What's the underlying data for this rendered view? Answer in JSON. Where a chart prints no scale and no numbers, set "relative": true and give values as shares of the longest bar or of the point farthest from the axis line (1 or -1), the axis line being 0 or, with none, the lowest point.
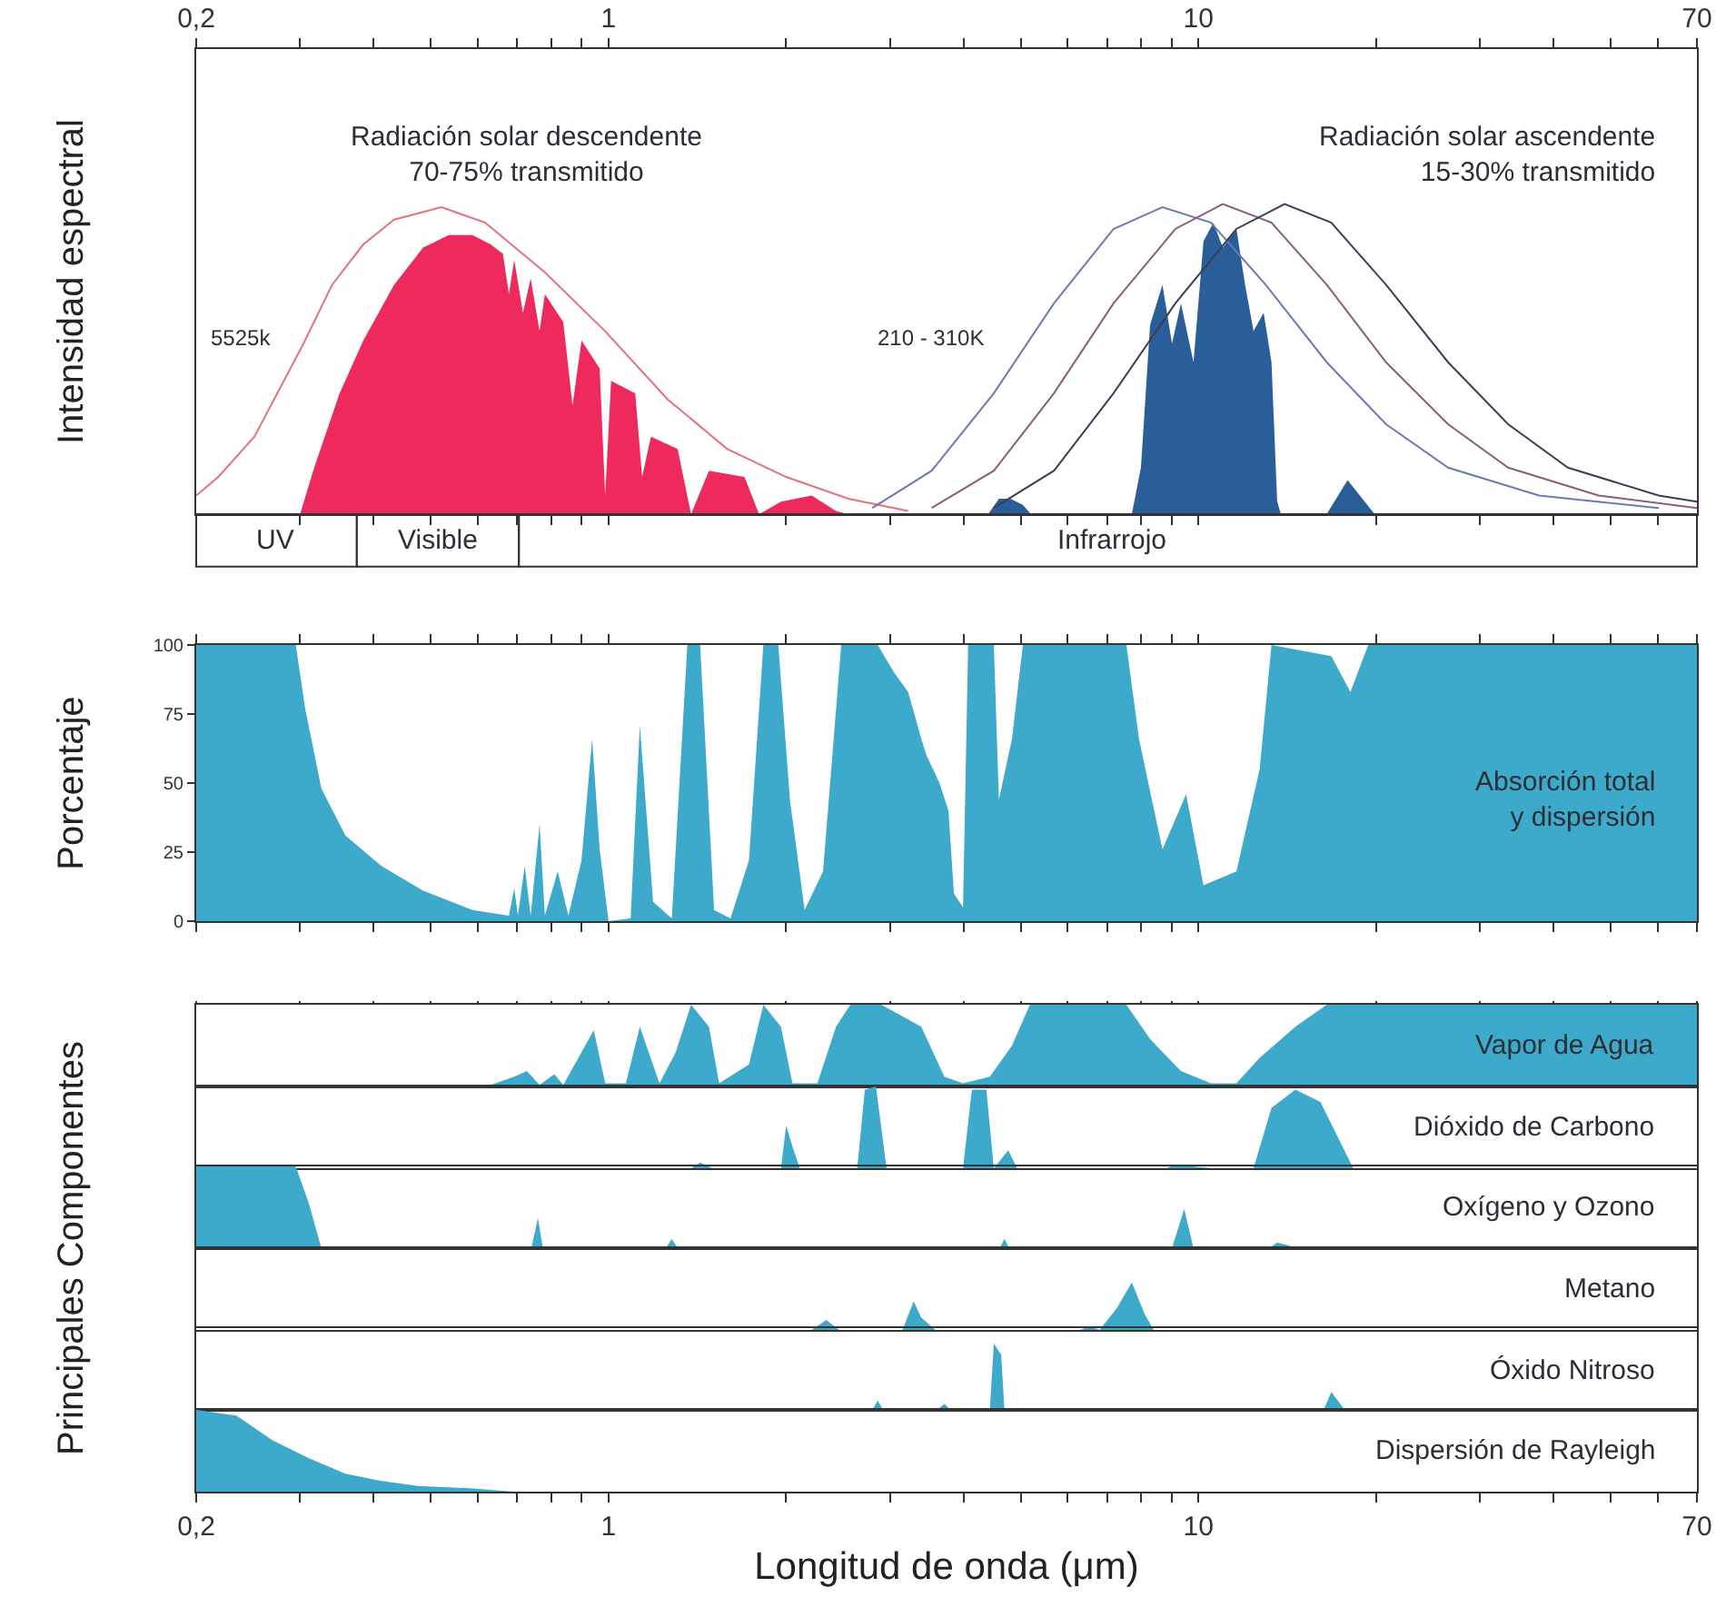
{
  "chart_data": [
    {
      "type": "area",
      "relative": true,
      "log": "x",
      "xlim": [
        0.2,
        70
      ],
      "tick_labels": "x",
      "ylabel": "Intensidad espectral",
      "xticks": [
        {
          "value": 0.2,
          "label": "0,2"
        },
        {
          "value": 0.3,
          "label": null
        },
        {
          "value": 0.4,
          "label": null
        },
        {
          "value": 0.5,
          "label": null
        },
        {
          "value": 0.6,
          "label": null
        },
        {
          "value": 0.7,
          "label": null
        },
        {
          "value": 0.8,
          "label": null
        },
        {
          "value": 0.9,
          "label": null
        },
        1,
        {
          "value": 2,
          "label": null
        },
        {
          "value": 3,
          "label": null
        },
        {
          "value": 4,
          "label": null
        },
        {
          "value": 5,
          "label": null
        },
        {
          "value": 6,
          "label": null
        },
        {
          "value": 7,
          "label": null
        },
        {
          "value": 8,
          "label": null
        },
        {
          "value": 9,
          "label": null
        },
        10,
        {
          "value": 20,
          "label": null
        },
        {
          "value": 30,
          "label": null
        },
        {
          "value": 40,
          "label": null
        },
        {
          "value": 50,
          "label": null
        },
        {
          "value": 60,
          "label": null
        },
        70
      ],
      "series": [
        {
          "type": "area",
          "color": "#ee2a5c",
          "x": [
            0.3,
            0.317,
            0.35,
            0.384,
            0.433,
            0.485,
            0.536,
            0.588,
            0.631,
            0.662,
            0.678,
            0.692,
            0.716,
            0.738,
            0.764,
            0.78,
            0.838,
            0.869,
            0.9,
            0.966,
            0.987,
            1.01,
            1.11,
            1.14,
            1.18,
            1.31,
            1.38,
            1.48,
            1.7,
            1.8,
            1.96,
            2.21,
            2.43,
            2.55
          ],
          "values": [
            0,
            0.15,
            0.39,
            0.56,
            0.74,
            0.86,
            0.9,
            0.9,
            0.87,
            0.84,
            0.71,
            0.82,
            0.65,
            0.76,
            0.59,
            0.71,
            0.62,
            0.35,
            0.56,
            0.47,
            0.06,
            0.43,
            0.39,
            0.12,
            0.25,
            0.21,
            0,
            0.14,
            0.12,
            0,
            0.04,
            0.06,
            0.01,
            0
          ]
        },
        {
          "type": "area",
          "color": "#2a5e99",
          "x": [
            4.4,
            4.59,
            4.8,
            5.04,
            5.2,
            7.71,
            7.99,
            8.28,
            8.69,
            9.02,
            9.34,
            9.81,
            10.2,
            10.6,
            11.0,
            11.6,
            12.0,
            12.4,
            12.9,
            13.3,
            13.6,
            13.8,
            16.5,
            17.9,
            19.9
          ],
          "values": [
            0,
            0.05,
            0.05,
            0.03,
            0,
            0,
            0.15,
            0.61,
            0.74,
            0.55,
            0.68,
            0.49,
            0.88,
            0.94,
            0.86,
            0.92,
            0.74,
            0.59,
            0.65,
            0.49,
            0.04,
            0,
            0,
            0.11,
            0
          ]
        },
        {
          "type": "line",
          "color": "#e2737d",
          "x": [
            0.2,
            0.218,
            0.251,
            0.304,
            0.34,
            0.384,
            0.433,
            0.521,
            0.618,
            0.78,
            0.987,
            1.26,
            1.59,
            2.0,
            2.55,
            3.22
          ],
          "values": [
            0.06,
            0.12,
            0.25,
            0.55,
            0.74,
            0.87,
            0.95,
            0.99,
            0.94,
            0.78,
            0.59,
            0.37,
            0.21,
            0.12,
            0.05,
            0.01
          ]
        },
        {
          "type": "line",
          "color": "#6a7bb0",
          "x": [
            2.8,
            3.53,
            4.5,
            5.69,
            7.18,
            8.69,
            10.5,
            13.0,
            16.5,
            20.8,
            26.5,
            37.8,
            60.3
          ],
          "values": [
            0.02,
            0.14,
            0.39,
            0.68,
            0.92,
            0.99,
            0.94,
            0.74,
            0.49,
            0.29,
            0.15,
            0.06,
            0.02
          ]
        },
        {
          "type": "line",
          "color": "#8c5c7c",
          "x": [
            3.53,
            4.5,
            5.69,
            7.18,
            9.14,
            11.0,
            13.3,
            16.5,
            20.8,
            26.5,
            33.5,
            47.7,
            70
          ],
          "values": [
            0.02,
            0.14,
            0.39,
            0.68,
            0.92,
            1,
            0.94,
            0.74,
            0.49,
            0.29,
            0.15,
            0.06,
            0.02
          ]
        },
        {
          "type": "line",
          "color": "#3a3f55",
          "x": [
            4.5,
            5.69,
            7.18,
            9.14,
            11.6,
            14.0,
            16.8,
            20.8,
            26.5,
            33.5,
            42.3,
            60.3,
            70
          ],
          "values": [
            0.02,
            0.14,
            0.39,
            0.68,
            0.92,
            1,
            0.94,
            0.74,
            0.49,
            0.29,
            0.15,
            0.06,
            0.04
          ]
        }
      ],
      "annotations": [
        "Radiación solar descendente\n70-75% transmitido",
        "Radiación solar ascendente\n15-30% transmitido",
        "5525k",
        "210 - 310K",
        "UV",
        "Visible",
        "Infrarrojo"
      ]
    },
    {
      "type": "area",
      "log": "x",
      "xlim": [
        0.2,
        70
      ],
      "ylim": [
        0,
        100
      ],
      "yticks": [
        0,
        25,
        50,
        75,
        100
      ],
      "tick_labels": "y",
      "ylabel": "Porcentaje",
      "color": "#3eaacb",
      "xticks": [
        {
          "value": 0.2,
          "label": null
        },
        {
          "value": 0.3,
          "label": null
        },
        {
          "value": 0.4,
          "label": null
        },
        {
          "value": 0.5,
          "label": null
        },
        {
          "value": 0.6,
          "label": null
        },
        {
          "value": 0.7,
          "label": null
        },
        {
          "value": 0.8,
          "label": null
        },
        {
          "value": 0.9,
          "label": null
        },
        {
          "value": 1,
          "label": null
        },
        {
          "value": 2,
          "label": null
        },
        {
          "value": 3,
          "label": null
        },
        {
          "value": 4,
          "label": null
        },
        {
          "value": 5,
          "label": null
        },
        {
          "value": 6,
          "label": null
        },
        {
          "value": 7,
          "label": null
        },
        {
          "value": 8,
          "label": null
        },
        {
          "value": 9,
          "label": null
        },
        {
          "value": 10,
          "label": null
        },
        {
          "value": 20,
          "label": null
        },
        {
          "value": 30,
          "label": null
        },
        {
          "value": 40,
          "label": null
        },
        {
          "value": 50,
          "label": null
        },
        {
          "value": 60,
          "label": null
        },
        {
          "value": 70,
          "label": null
        }
      ],
      "x": [
        0.2,
        0.295,
        0.306,
        0.326,
        0.358,
        0.412,
        0.485,
        0.588,
        0.678,
        0.692,
        0.702,
        0.721,
        0.738,
        0.764,
        0.78,
        0.82,
        0.855,
        0.9,
        0.938,
        0.966,
        1.0,
        1.09,
        1.13,
        1.19,
        1.28,
        1.36,
        1.43,
        1.51,
        1.61,
        1.73,
        1.83,
        1.94,
        2.03,
        2.15,
        2.31,
        2.48,
        2.86,
        3.05,
        3.22,
        3.39,
        3.46,
        3.64,
        3.77,
        3.85,
        3.99,
        4.07,
        4.5,
        4.59,
        4.83,
        5.04,
        7.55,
        7.93,
        8.69,
        9.53,
        10.2,
        11.6,
        12.7,
        13.3,
        16.8,
        18.1,
        19.4,
        70
      ],
      "values": [
        100,
        100,
        77,
        48,
        31,
        20,
        11,
        4,
        2,
        12,
        2,
        20,
        2,
        35,
        2,
        18,
        2,
        22,
        66,
        26,
        0,
        1,
        71,
        7,
        1,
        100,
        100,
        4,
        1,
        22,
        100,
        100,
        44,
        4,
        18,
        100,
        100,
        90,
        83,
        66,
        60,
        50,
        40,
        10,
        5,
        100,
        100,
        44,
        66,
        100,
        100,
        66,
        26,
        46,
        13,
        18,
        55,
        100,
        96,
        83,
        100,
        100
      ],
      "annotations": [
        "Absorción total\ny dispersión"
      ]
    },
    {
      "type": "area",
      "relative": true,
      "log": "x",
      "xlim": [
        0.2,
        70
      ],
      "tick_labels": false,
      "ylabel": "Principales Componentes",
      "color": "#3eaacb",
      "xticks": [
        {
          "value": 0.2,
          "label": null
        },
        {
          "value": 0.3,
          "label": null
        },
        {
          "value": 0.4,
          "label": null
        },
        {
          "value": 0.5,
          "label": null
        },
        {
          "value": 0.6,
          "label": null
        },
        {
          "value": 0.7,
          "label": null
        },
        {
          "value": 0.8,
          "label": null
        },
        {
          "value": 0.9,
          "label": null
        },
        {
          "value": 1,
          "label": null
        },
        {
          "value": 2,
          "label": null
        },
        {
          "value": 3,
          "label": null
        },
        {
          "value": 4,
          "label": null
        },
        {
          "value": 5,
          "label": null
        },
        {
          "value": 6,
          "label": null
        },
        {
          "value": 7,
          "label": null
        },
        {
          "value": 8,
          "label": null
        },
        {
          "value": 9,
          "label": null
        },
        {
          "value": 10,
          "label": null
        },
        {
          "value": 20,
          "label": null
        },
        {
          "value": 30,
          "label": null
        },
        {
          "value": 40,
          "label": null
        },
        {
          "value": 50,
          "label": null
        },
        {
          "value": 60,
          "label": null
        },
        {
          "value": 70,
          "label": null
        }
      ],
      "x": [
        0.588,
        0.631,
        0.692,
        0.727,
        0.764,
        0.809,
        0.838,
        0.9,
        0.944,
        0.987,
        1.07,
        1.13,
        1.22,
        1.3,
        1.38,
        1.48,
        1.54,
        1.73,
        1.83,
        1.96,
        2.05,
        2.26,
        2.43,
        2.57,
        2.9,
        3.11,
        3.39,
        3.71,
        3.99,
        4.43,
        4.83,
        5.18,
        7.55,
        8.28,
        9.34,
        10.5,
        11.6,
        12.7,
        14.6,
        16.5,
        70
      ],
      "values": [
        0,
        0.02,
        0.12,
        0.19,
        0.02,
        0.15,
        0.02,
        0.42,
        0.69,
        0.04,
        0.04,
        0.73,
        0.04,
        0.42,
        1,
        0.73,
        0.04,
        0.27,
        1,
        0.73,
        0.04,
        0.04,
        0.73,
        1,
        1,
        0.88,
        0.73,
        0.12,
        0.04,
        0.12,
        0.5,
        1,
        1,
        0.58,
        0.19,
        0.04,
        0.04,
        0.35,
        0.73,
        1,
        1
      ],
      "annotations": [
        "Vapor de Agua"
      ]
    },
    {
      "type": "area",
      "relative": true,
      "log": "x",
      "xlim": [
        0.2,
        70
      ],
      "tick_labels": false,
      "color": "#3eaacb",
      "x": [
        1.38,
        1.43,
        1.5,
        1.96,
        2.0,
        2.06,
        2.11,
        2.64,
        2.72,
        2.84,
        2.96,
        3.99,
        4.13,
        4.37,
        4.5,
        4.76,
        4.93,
        8.8,
        9.14,
        10.6,
        12.4,
        13.3,
        14.6,
        16.1,
        18.3
      ],
      "values": [
        0,
        0.07,
        0,
        0,
        0.52,
        0.22,
        0,
        0,
        0.96,
        1,
        0,
        0,
        0.96,
        0.96,
        0,
        0.22,
        0,
        0,
        0.04,
        0,
        0,
        0.74,
        0.96,
        0.81,
        0
      ],
      "annotations": [
        "Dióxido de Carbono"
      ]
    },
    {
      "type": "area",
      "relative": true,
      "log": "x",
      "xlim": [
        0.2,
        70
      ],
      "tick_labels": false,
      "color": "#3eaacb",
      "x": [
        0.2,
        0.295,
        0.31,
        0.326,
        0.74,
        0.759,
        0.774,
        1.25,
        1.28,
        1.31,
        4.6,
        4.69,
        4.78,
        9.02,
        9.46,
        9.81,
        13.2,
        13.6,
        14.8
      ],
      "values": [
        1,
        1,
        0.56,
        0,
        0,
        0.37,
        0,
        0,
        0.11,
        0,
        0,
        0.11,
        0,
        0,
        0.48,
        0,
        0,
        0.07,
        0
      ],
      "annotations": [
        "Oxígeno y Ozono"
      ]
    },
    {
      "type": "area",
      "relative": true,
      "log": "x",
      "xlim": [
        0.2,
        70
      ],
      "tick_labels": false,
      "color": "#3eaacb",
      "x": [
        2.21,
        2.34,
        2.46,
        3.15,
        3.29,
        3.39,
        3.58,
        6.3,
        6.55,
        6.8,
        7.28,
        7.71,
        8.11,
        8.4
      ],
      "values": [
        0,
        0.21,
        0,
        0,
        0.6,
        0.26,
        0,
        0,
        0.07,
        0,
        0.47,
        1,
        0.33,
        0
      ],
      "annotations": [
        "Metano"
      ]
    },
    {
      "type": "area",
      "relative": true,
      "log": "x",
      "xlim": [
        0.2,
        70
      ],
      "tick_labels": false,
      "color": "#3eaacb",
      "x": [
        2.8,
        2.86,
        2.92,
        3.6,
        3.71,
        3.8,
        4.43,
        4.5,
        4.63,
        4.69,
        16.3,
        16.8,
        17.7
      ],
      "values": [
        0,
        0.14,
        0,
        0,
        0.09,
        0,
        0,
        1,
        0.83,
        0,
        0,
        0.27,
        0
      ],
      "annotations": [
        "Óxido Nitroso"
      ]
    },
    {
      "type": "area",
      "relative": true,
      "log": "x",
      "xlim": [
        0.2,
        70
      ],
      "tick_labels": "x",
      "xlabel": "Longitud de onda (μm)",
      "color": "#3eaacb",
      "xticks": [
        {
          "value": 0.2,
          "label": "0,2"
        },
        {
          "value": 0.3,
          "label": null
        },
        {
          "value": 0.4,
          "label": null
        },
        {
          "value": 0.5,
          "label": null
        },
        {
          "value": 0.6,
          "label": null
        },
        {
          "value": 0.7,
          "label": null
        },
        {
          "value": 0.8,
          "label": null
        },
        {
          "value": 0.9,
          "label": null
        },
        1,
        {
          "value": 2,
          "label": null
        },
        {
          "value": 3,
          "label": null
        },
        {
          "value": 4,
          "label": null
        },
        {
          "value": 5,
          "label": null
        },
        {
          "value": 6,
          "label": null
        },
        {
          "value": 7,
          "label": null
        },
        {
          "value": 8,
          "label": null
        },
        {
          "value": 9,
          "label": null
        },
        10,
        {
          "value": 20,
          "label": null
        },
        {
          "value": 30,
          "label": null
        },
        {
          "value": 40,
          "label": null
        },
        {
          "value": 50,
          "label": null
        },
        {
          "value": 60,
          "label": null
        },
        70
      ],
      "x": [
        0.2,
        0.234,
        0.269,
        0.31,
        0.358,
        0.412,
        0.475,
        0.588,
        0.692
      ],
      "values": [
        1,
        0.93,
        0.63,
        0.41,
        0.22,
        0.13,
        0.07,
        0.04,
        0
      ],
      "annotations": [
        "Dispersión de Rayleigh"
      ]
    }
  ]
}
